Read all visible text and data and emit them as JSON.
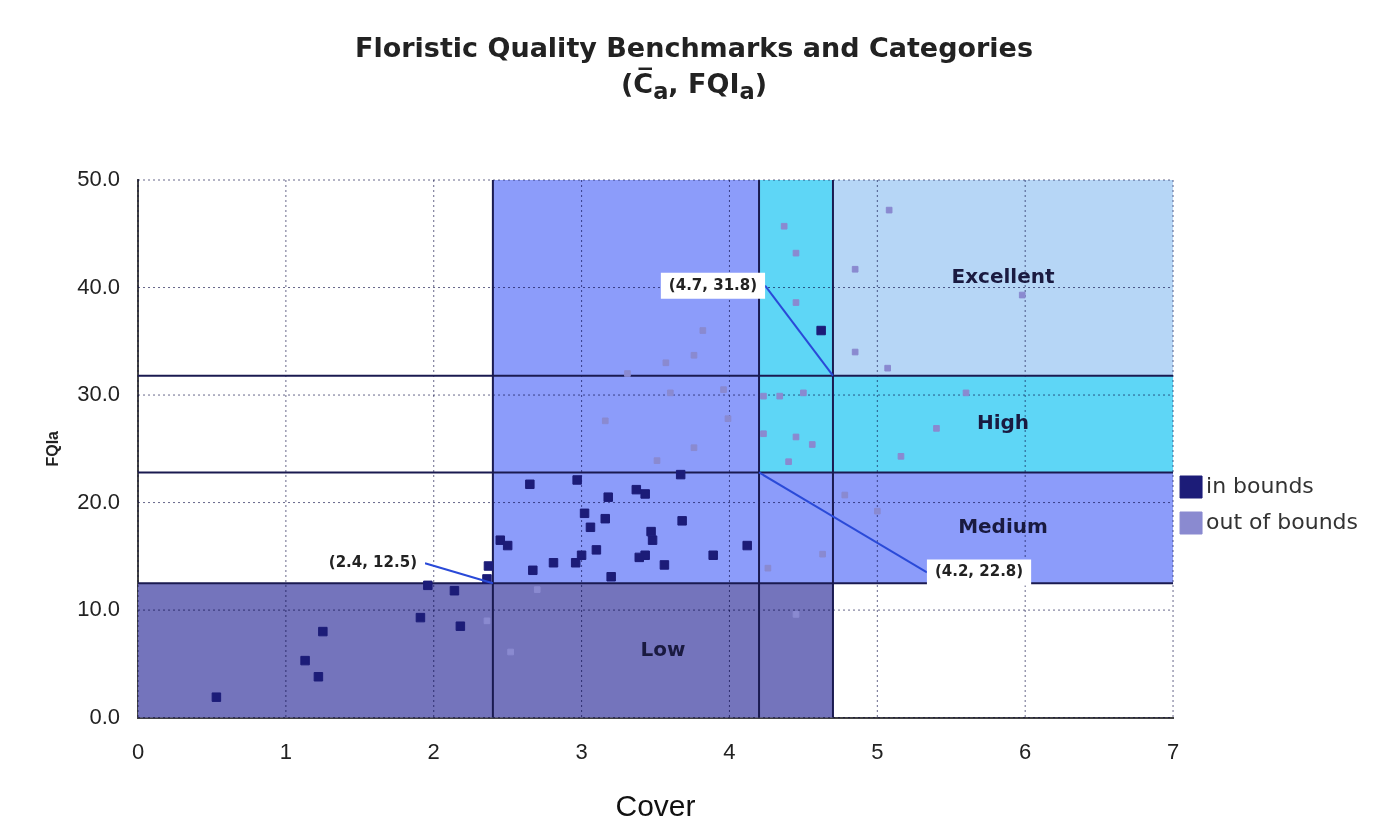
{
  "chart_data": {
    "type": "scatter",
    "title": "Floristic Quality Benchmarks and Categories",
    "subtitle": "(C̅$_{a}$, FQI$_{a}$)",
    "xlabel": "Cover",
    "ylabel": "FQIa",
    "xlim": [
      0,
      7
    ],
    "xticks": [
      0,
      1,
      2,
      3,
      4,
      5,
      6,
      7
    ],
    "ylim": [
      0,
      50
    ],
    "yticks": [
      {
        "value": 0,
        "label": "0.0"
      },
      {
        "value": 10,
        "label": "10.0"
      },
      {
        "value": 20,
        "label": "20.0"
      },
      {
        "value": 30,
        "label": "30.0"
      },
      {
        "value": 40,
        "label": "40.0"
      },
      {
        "value": 50,
        "label": "50.0"
      }
    ],
    "grid": true,
    "legend": "right",
    "marker": "square",
    "series": [
      {
        "name": "in bounds",
        "color": "#1c1c78",
        "x": [
          0.53,
          1.25,
          1.13,
          1.22,
          1.91,
          1.96,
          2.14,
          2.18,
          2.36,
          2.37,
          2.45,
          2.5,
          2.65,
          2.97,
          3.18,
          3.37,
          3.43,
          3.67,
          3.02,
          3.06,
          3.16,
          3.0,
          2.96,
          2.81,
          2.67,
          3.2,
          3.47,
          3.48,
          3.43,
          3.39,
          3.56,
          3.68,
          3.89,
          4.12,
          3.1,
          4.62
        ],
        "values": [
          1.9,
          8.0,
          5.3,
          3.8,
          9.3,
          12.3,
          11.8,
          8.5,
          12.9,
          14.1,
          16.5,
          16.0,
          21.7,
          22.1,
          20.5,
          21.2,
          20.8,
          22.6,
          19.0,
          17.7,
          18.5,
          15.1,
          14.4,
          14.4,
          13.7,
          13.1,
          17.3,
          16.5,
          15.1,
          14.9,
          14.2,
          18.3,
          15.1,
          16.0,
          15.6,
          36.0
        ]
      },
      {
        "name": "out of bounds",
        "color": "#8a8ad0",
        "x": [
          2.36,
          2.52,
          3.82,
          3.76,
          3.57,
          3.6,
          3.31,
          3.16,
          3.51,
          3.76,
          3.96,
          3.99,
          4.45,
          2.7,
          4.37,
          4.45,
          4.45,
          4.23,
          4.34,
          4.5,
          4.23,
          4.45,
          4.56,
          4.4,
          5.08,
          4.85,
          5.98,
          4.85,
          5.07,
          5.6,
          5.4,
          5.16,
          4.78,
          5.0,
          4.26,
          4.63
        ],
        "values": [
          9.0,
          6.1,
          36.0,
          33.7,
          33.0,
          30.2,
          32.0,
          27.6,
          23.9,
          25.1,
          30.5,
          27.8,
          9.6,
          11.9,
          45.7,
          43.2,
          38.6,
          29.9,
          29.9,
          30.2,
          26.4,
          26.1,
          25.4,
          23.8,
          47.2,
          41.7,
          39.3,
          34.0,
          32.5,
          30.2,
          26.9,
          24.3,
          20.7,
          19.2,
          13.9,
          15.2
        ]
      }
    ],
    "bands": [
      {
        "axis": "y",
        "from": 0,
        "to": 12.5,
        "label": "Low",
        "color": "#7474bc"
      },
      {
        "axis": "y",
        "from": 12.5,
        "to": 22.8,
        "label": "Medium",
        "color": "#8c9cfa"
      },
      {
        "axis": "y",
        "from": 22.8,
        "to": 31.8,
        "label": "High",
        "color": "#5ed6f6"
      },
      {
        "axis": "y",
        "from": 31.8,
        "to": 50,
        "label": "Excellent",
        "color": "#b6d6f6"
      },
      {
        "axis": "x",
        "from": 2.4,
        "to": 4.2,
        "color": "#8c9cfa"
      },
      {
        "axis": "x",
        "from": 4.2,
        "to": 4.7,
        "color": "#5ed6f6"
      }
    ],
    "ref_lines": [
      {
        "axis": "x",
        "value": 2.4
      },
      {
        "axis": "x",
        "value": 4.2
      },
      {
        "axis": "x",
        "value": 4.7
      },
      {
        "axis": "y",
        "value": 12.5
      },
      {
        "axis": "y",
        "value": 22.8
      },
      {
        "axis": "y",
        "value": 31.8
      }
    ],
    "annotations": [
      {
        "text": "(2.4, 12.5)",
        "x": 2.4,
        "y": 12.5
      },
      {
        "text": "(4.7, 31.8)",
        "x": 4.7,
        "y": 31.8
      },
      {
        "text": "(4.2, 22.8)",
        "x": 4.2,
        "y": 22.8
      }
    ]
  }
}
